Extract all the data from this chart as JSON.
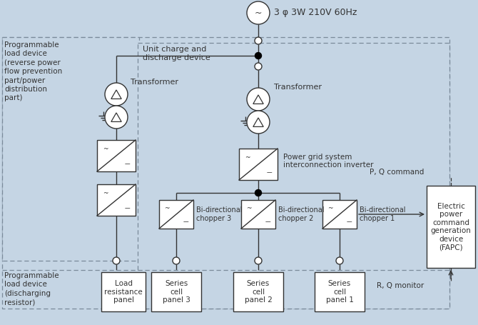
{
  "bg_color": "#c5d5e4",
  "line_color": "#333333",
  "white_box": "#ffffff",
  "title": "3 φ 3W 210V 60Hz",
  "labels": {
    "prog_load_top": "Programmable\nload device\n(reverse power\nflow prevention\npart/power\ndistribution\npart)",
    "prog_load_bot": "Programmable\nload device\n(discharging\nresistor)",
    "transformer_left": "Transformer",
    "transformer_right": "Transformer",
    "unit_charge": "Unit charge and\ndischarge device",
    "power_grid": "Power grid system\ninterconnection inverter",
    "bi1": "Bi-directional\nchopper 1",
    "bi2": "Bi-directional\nchopper 2",
    "bi3": "Bi-directional\nchopper 3",
    "series1": "Series\ncell\npanel 1",
    "series2": "Series\ncell\npanel 2",
    "series3": "Series\ncell\npanel 3",
    "load_res": "Load\nresistance\npanel",
    "fapc": "Electric\npower\ncommand\ngeneration\ndevice\n(FAPC)",
    "pq_cmd": "P, Q command",
    "rq_mon": "R, Q monitor"
  }
}
